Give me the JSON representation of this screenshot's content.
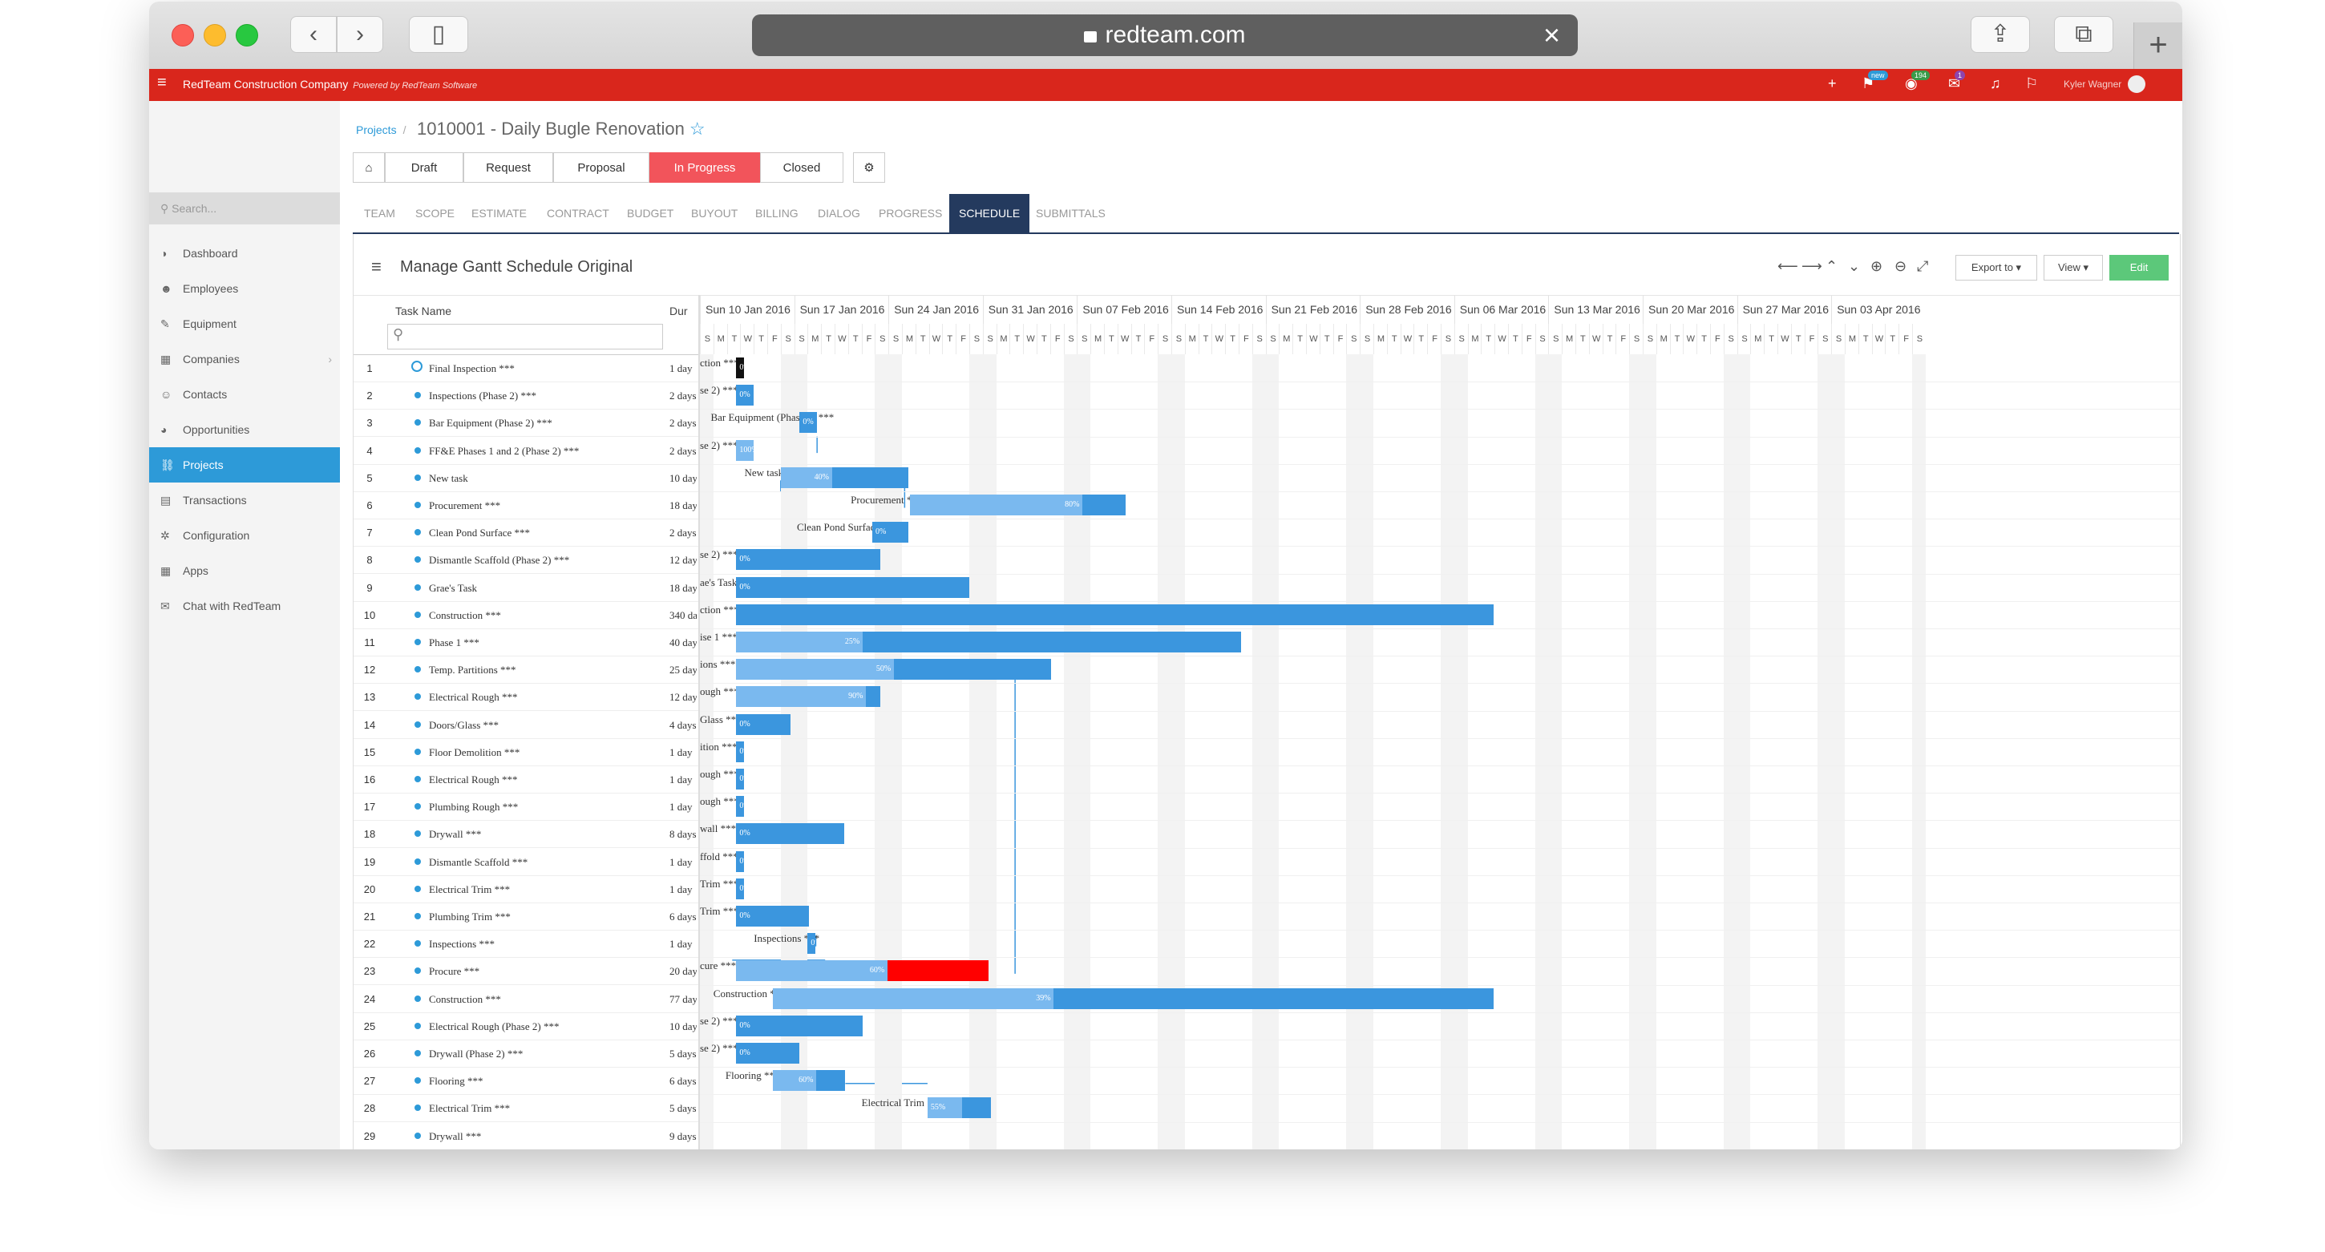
{
  "browser": {
    "url": "redteam.com"
  },
  "header": {
    "company": "RedTeam Construction Company",
    "powered": "Powered by RedTeam Software",
    "user": "Kyler Wagner",
    "badges": {
      "new": "new",
      "count1": "194",
      "count2": "1"
    }
  },
  "sidebar": {
    "search_placeholder": "Search...",
    "items": [
      "Dashboard",
      "Employees",
      "Equipment",
      "Companies",
      "Contacts",
      "Opportunities",
      "Projects",
      "Transactions",
      "Configuration",
      "Apps",
      "Chat with RedTeam"
    ],
    "active": "Projects"
  },
  "breadcrumb": {
    "root": "Projects",
    "title": "1010001 - Daily Bugle Renovation"
  },
  "stages": [
    "Draft",
    "Request",
    "Proposal",
    "In Progress",
    "Closed"
  ],
  "tabs": [
    "TEAM",
    "SCOPE",
    "ESTIMATE",
    "CONTRACT",
    "BUDGET",
    "BUYOUT",
    "BILLING",
    "DIALOG",
    "PROGRESS",
    "SCHEDULE",
    "SUBMITTALS"
  ],
  "gantt": {
    "title": "Manage Gantt Schedule Original",
    "export_label": "Export to",
    "view_label": "View",
    "edit_label": "Edit",
    "col_task": "Task Name",
    "col_dur": "Dur",
    "weeks": [
      "Sun 10 Jan 2016",
      "Sun 17 Jan 2016",
      "Sun 24 Jan 2016",
      "Sun 31 Jan 2016",
      "Sun 07 Feb 2016",
      "Sun 14 Feb 2016",
      "Sun 21 Feb 2016",
      "Sun 28 Feb 2016",
      "Sun 06 Mar 2016",
      "Sun 13 Mar 2016",
      "Sun 20 Mar 2016",
      "Sun 27 Mar 2016",
      "Sun 03 Apr 2016"
    ],
    "day_letters": [
      "S",
      "M",
      "T",
      "W",
      "T",
      "F",
      "S"
    ],
    "tasks": [
      {
        "n": "1",
        "name": "Final Inspection ***",
        "dur": "1 day",
        "type": "milestone",
        "label": "ction ***",
        "progress": "0%",
        "color": "#111"
      },
      {
        "n": "2",
        "name": "Inspections (Phase 2) ***",
        "dur": "2 days",
        "label": "se 2) ***",
        "progress": "0%"
      },
      {
        "n": "3",
        "name": "Bar Equipment (Phase 2) ***",
        "dur": "2 days",
        "label": "Bar Equipment (Phase 2) ***",
        "progress": "0%"
      },
      {
        "n": "4",
        "name": "FF&E Phases 1 and 2 (Phase 2) ***",
        "dur": "2 days",
        "label": "se 2) ***",
        "progress": "100%"
      },
      {
        "n": "5",
        "name": "New task",
        "dur": "10 days",
        "label": "New task",
        "progress": "40%"
      },
      {
        "n": "6",
        "name": "Procurement ***",
        "dur": "18 days",
        "label": "Procurement ***",
        "progress": "80%"
      },
      {
        "n": "7",
        "name": "Clean Pond Surface ***",
        "dur": "2 days",
        "label": "Clean Pond Surface ***",
        "progress": "0%"
      },
      {
        "n": "8",
        "name": "Dismantle Scaffold (Phase 2) ***",
        "dur": "12 days",
        "label": "se 2) ***",
        "progress": "0%"
      },
      {
        "n": "9",
        "name": "Grae's Task",
        "dur": "18 days",
        "label": "ae's Task",
        "progress": "0%"
      },
      {
        "n": "10",
        "name": "Construction ***",
        "dur": "340 days",
        "label": "ction ***",
        "progress": ""
      },
      {
        "n": "11",
        "name": "Phase 1 ***",
        "dur": "40 days",
        "label": "ise 1 ***",
        "progress": "25%"
      },
      {
        "n": "12",
        "name": "Temp. Partitions ***",
        "dur": "25 days",
        "label": "ions ***",
        "progress": "50%"
      },
      {
        "n": "13",
        "name": "Electrical Rough ***",
        "dur": "12 days",
        "label": "ough ***",
        "progress": "90%"
      },
      {
        "n": "14",
        "name": "Doors/Glass ***",
        "dur": "4 days",
        "label": "Glass ***",
        "progress": "0%"
      },
      {
        "n": "15",
        "name": "Floor Demolition ***",
        "dur": "1 day",
        "label": "ition ***",
        "progress": "0%"
      },
      {
        "n": "16",
        "name": "Electrical Rough ***",
        "dur": "1 day",
        "label": "ough ***",
        "progress": "0%"
      },
      {
        "n": "17",
        "name": "Plumbing Rough ***",
        "dur": "1 day",
        "label": "ough ***",
        "progress": "0%"
      },
      {
        "n": "18",
        "name": "Drywall ***",
        "dur": "8 days",
        "label": "wall ***",
        "progress": "0%"
      },
      {
        "n": "19",
        "name": "Dismantle Scaffold ***",
        "dur": "1 day",
        "label": "ffold ***",
        "progress": "0%"
      },
      {
        "n": "20",
        "name": "Electrical Trim ***",
        "dur": "1 day",
        "label": "Trim ***",
        "progress": "0%"
      },
      {
        "n": "21",
        "name": "Plumbing Trim ***",
        "dur": "6 days",
        "label": "Trim ***",
        "progress": "0%"
      },
      {
        "n": "22",
        "name": "Inspections ***",
        "dur": "1 day",
        "label": "Inspections ***",
        "progress": "0%"
      },
      {
        "n": "23",
        "name": "Procure ***",
        "dur": "20 days",
        "label": "cure ***",
        "progress": "60%"
      },
      {
        "n": "24",
        "name": "Construction ***",
        "dur": "77 days",
        "label": "Construction ***",
        "progress": "39%"
      },
      {
        "n": "25",
        "name": "Electrical Rough (Phase 2) ***",
        "dur": "10 days",
        "label": "se 2) ***",
        "progress": "0%"
      },
      {
        "n": "26",
        "name": "Drywall (Phase 2) ***",
        "dur": "5 days",
        "label": "se 2) ***",
        "progress": "0%"
      },
      {
        "n": "27",
        "name": "Flooring ***",
        "dur": "6 days",
        "label": "Flooring ***",
        "progress": "60%"
      },
      {
        "n": "28",
        "name": "Electrical Trim ***",
        "dur": "5 days",
        "label": "Electrical Trim ***",
        "progress": "55%"
      },
      {
        "n": "29",
        "name": "Drywall ***",
        "dur": "9 days",
        "label": "",
        "progress": ""
      }
    ]
  }
}
